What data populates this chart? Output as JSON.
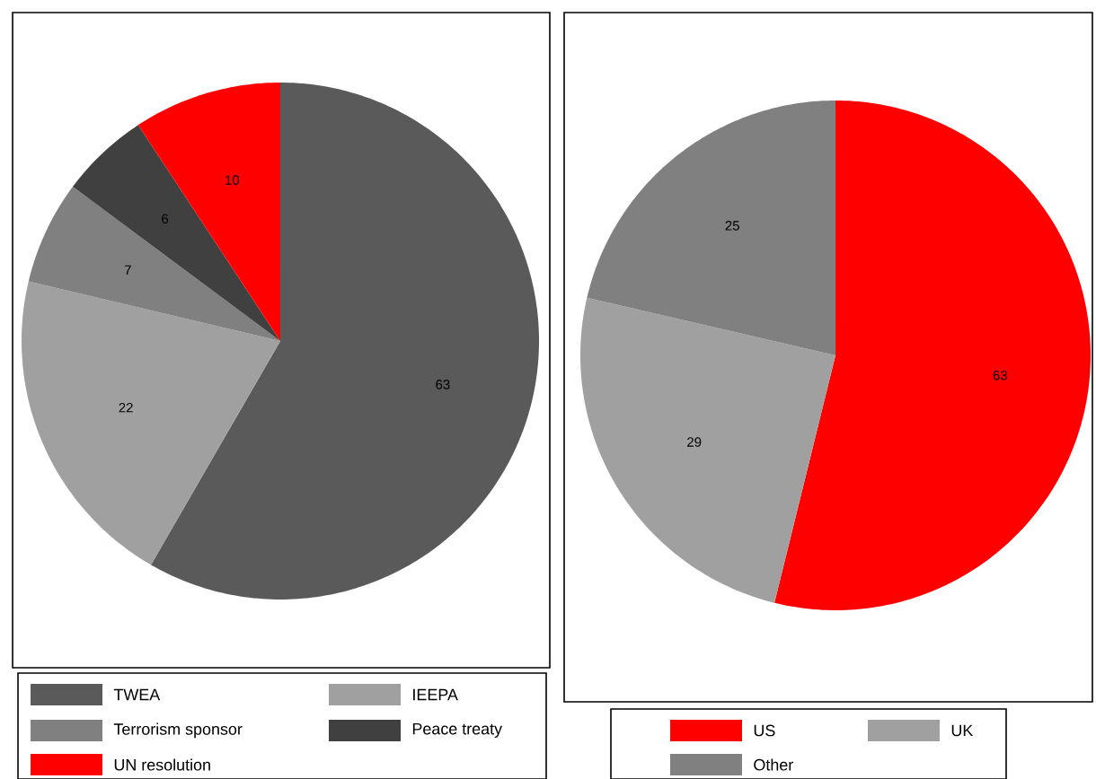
{
  "chart_data": [
    {
      "type": "pie",
      "categories": [
        "TWEA",
        "IEEPA",
        "Terrorism sponsor",
        "Peace treaty",
        "UN resolution"
      ],
      "values": [
        63,
        22,
        7,
        6,
        10
      ],
      "colors": [
        "#5a5a5a",
        "#a0a0a0",
        "#808080",
        "#404040",
        "#ff0000"
      ],
      "data_labels": true,
      "legend": "bottom"
    },
    {
      "type": "pie",
      "categories": [
        "US",
        "UK",
        "Other"
      ],
      "values": [
        63,
        29,
        25
      ],
      "colors": [
        "#ff0000",
        "#a0a0a0",
        "#808080"
      ],
      "data_labels": true,
      "legend": "bottom"
    }
  ]
}
